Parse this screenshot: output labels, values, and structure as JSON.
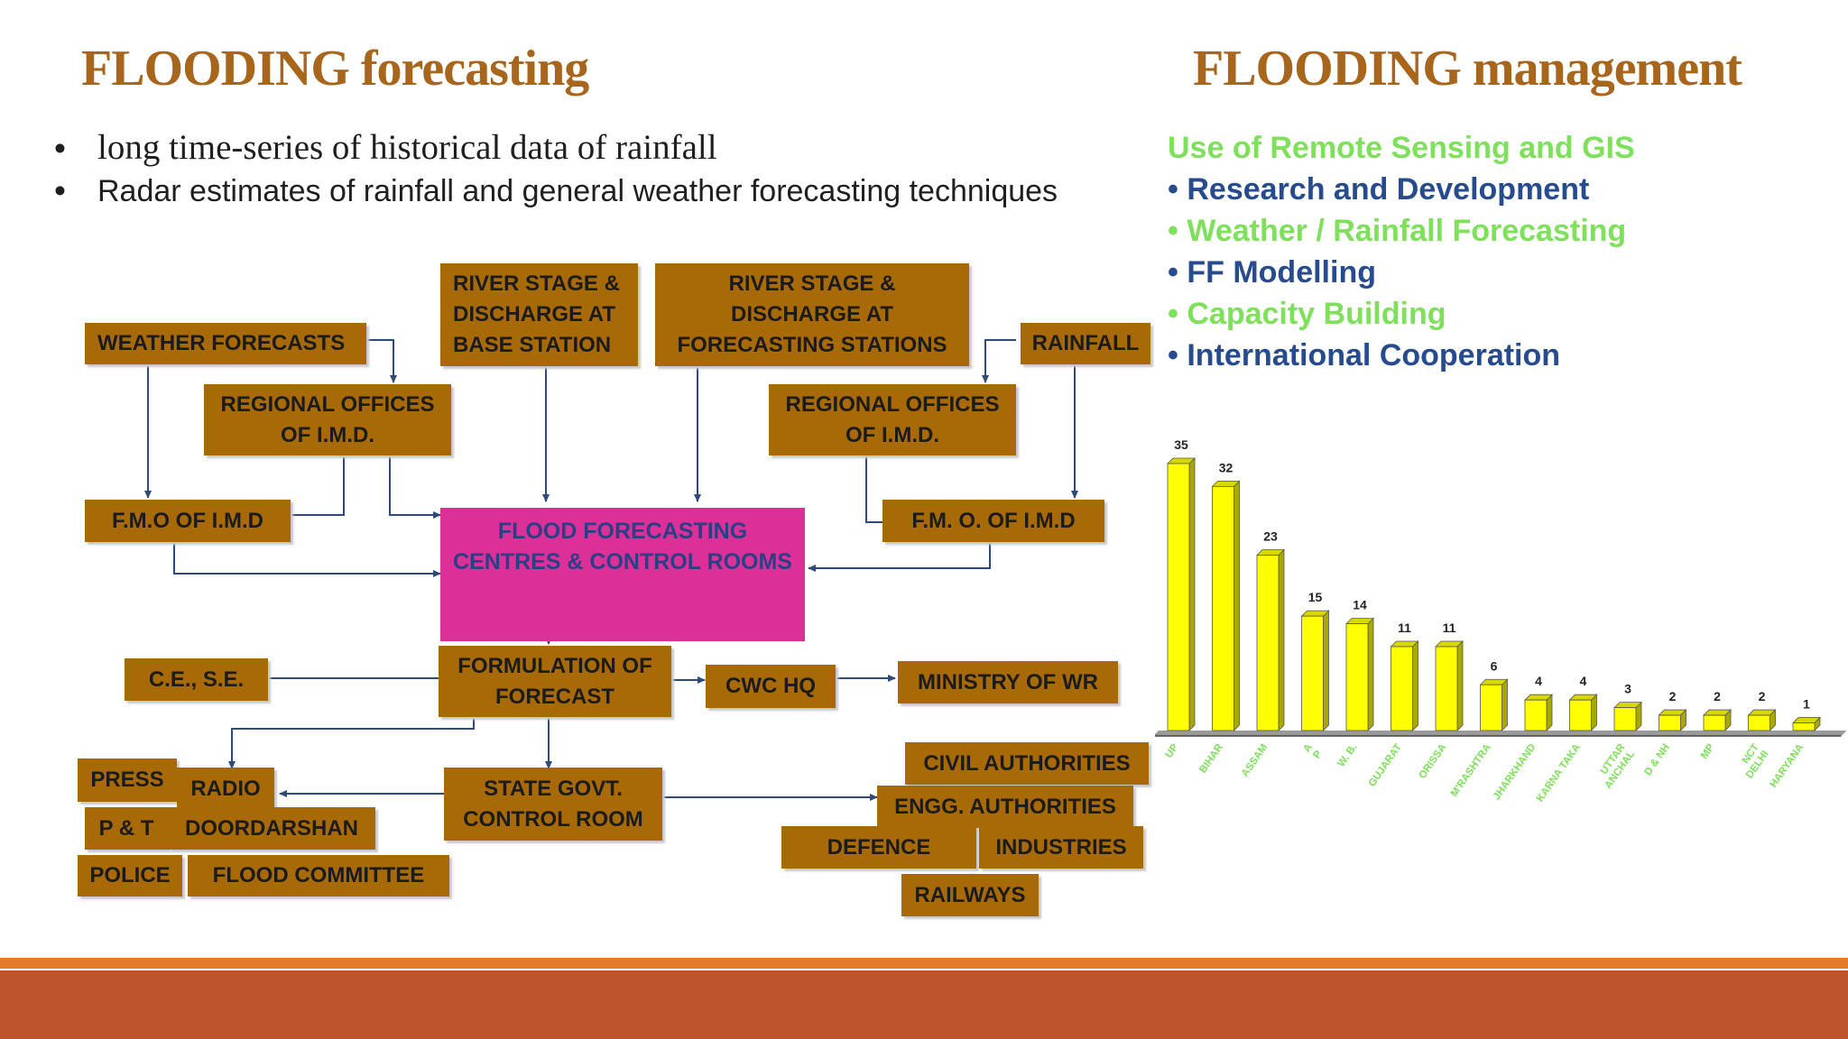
{
  "titles": {
    "left": "FLOODING forecasting",
    "right": "FLOODING management"
  },
  "bullets": [
    "long time-series of historical data of rainfall",
    "Radar estimates of rainfall and general weather forecasting techniques"
  ],
  "bullet_symbol": "•",
  "flowchart": {
    "weather_forecasts": "WEATHER FORECASTS",
    "river_stage_base": "RIVER STAGE &\nDISCHARGE AT\nBASE STATION",
    "river_stage_forecasting": "RIVER STAGE &\nDISCHARGE AT\nFORECASTING STATIONS",
    "rainfall": "RAINFALL",
    "regional_offices_left": "REGIONAL OFFICES\nOF I.M.D.",
    "regional_offices_right": "REGIONAL OFFICES\nOF I.M.D.",
    "fmo_left": "F.M.O OF I.M.D",
    "fmo_right": "F.M. O. OF I.M.D",
    "flood_centres": "FLOOD  FORECASTING\nCENTRES & CONTROL ROOMS",
    "formulation": "FORMULATION OF\nFORECAST",
    "ce_se": "C.E.,  S.E.",
    "cwc_hq": "CWC  HQ",
    "ministry": "MINISTRY OF WR",
    "press": "PRESS",
    "radio": "RADIO",
    "p_and_t": "P & T",
    "doordarshan": "DOORDARSHAN",
    "police": "POLICE",
    "flood_committee": "FLOOD COMMITTEE",
    "state_govt": "STATE GOVT.\nCONTROL ROOM",
    "civil_authorities": "CIVIL AUTHORITIES",
    "engg_authorities": "ENGG. AUTHORITIES",
    "defence": "DEFENCE",
    "industries": "INDUSTRIES",
    "railways": "RAILWAYS"
  },
  "management": {
    "heading": "Use of Remote Sensing and GIS",
    "items": [
      "Research and Development",
      "Weather / Rainfall Forecasting",
      "FF Modelling",
      "Capacity Building",
      "International Cooperation"
    ]
  },
  "colors": {
    "title": "#a8661c",
    "box": "#a86a07",
    "pink_box": "#dc2f98",
    "pink_text": "#2b3f87",
    "arrow": "#2d4a7a",
    "green": "#7ee05b",
    "navy": "#264b8e",
    "bar_fill": "#ffff00",
    "bar_side": "#a8a800",
    "band_light": "#e07c2c",
    "band_dark": "#be542b"
  },
  "chart_data": {
    "type": "bar",
    "categories": [
      "UP",
      "BIHAR",
      "ASSAM",
      "A\nP",
      "W. B.",
      "GUJARAT",
      "ORISSA",
      "M'RASHTRA",
      "JHARKHAND",
      "KARNA TAKA",
      "UTTAR\nANCHAL",
      "D & NH",
      "MP",
      "NCT\nDELHI",
      "HARYANA"
    ],
    "values": [
      35,
      32,
      23,
      15,
      14,
      11,
      11,
      6,
      4,
      4,
      3,
      2,
      2,
      2,
      1
    ],
    "title": "",
    "xlabel": "",
    "ylabel": "",
    "ylim": [
      0,
      35
    ],
    "grid": false,
    "style": "3d"
  }
}
